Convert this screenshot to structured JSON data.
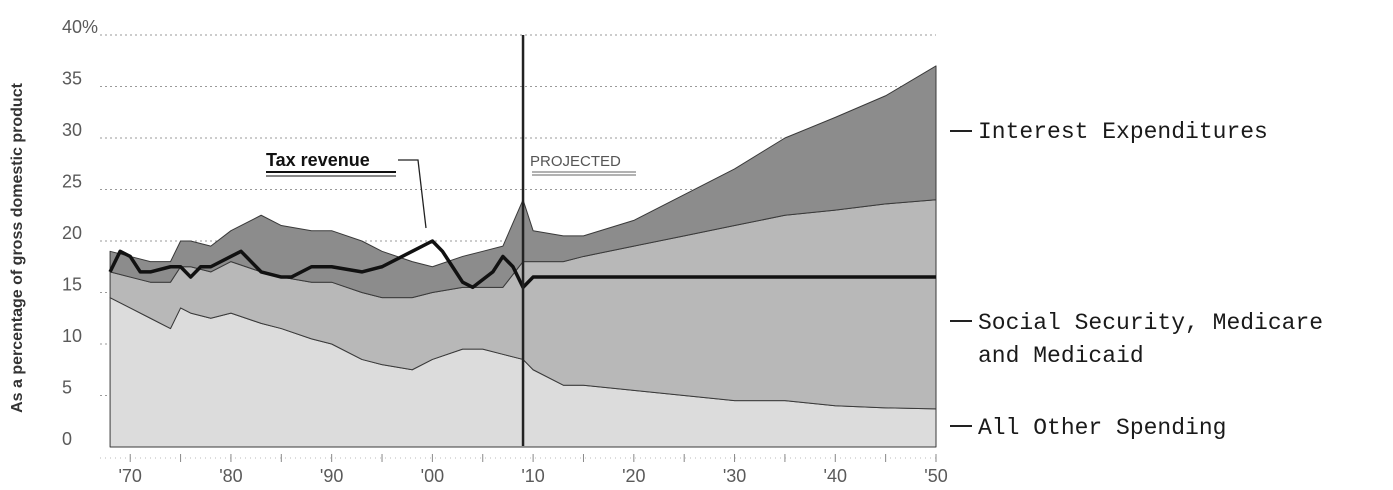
{
  "chart_data": {
    "type": "area",
    "ylabel": "As a percentage of gross domestic product",
    "xlabel": "",
    "ylim": [
      0,
      40
    ],
    "xlim": [
      1967,
      2050
    ],
    "y_ticks": [
      {
        "value": 40,
        "label": "40%"
      },
      {
        "value": 35,
        "label": "35"
      },
      {
        "value": 30,
        "label": "30"
      },
      {
        "value": 25,
        "label": "25"
      },
      {
        "value": 20,
        "label": "20"
      },
      {
        "value": 15,
        "label": "15"
      },
      {
        "value": 10,
        "label": "10"
      },
      {
        "value": 5,
        "label": "5"
      },
      {
        "value": 0,
        "label": "0"
      }
    ],
    "x_ticks": [
      {
        "value": 1970,
        "label": "'70"
      },
      {
        "value": 1980,
        "label": "'80"
      },
      {
        "value": 1990,
        "label": "'90"
      },
      {
        "value": 2000,
        "label": "'00"
      },
      {
        "value": 2010,
        "label": "'10"
      },
      {
        "value": 2020,
        "label": "'20"
      },
      {
        "value": 2030,
        "label": "'30"
      },
      {
        "value": 2040,
        "label": "'40"
      },
      {
        "value": 2050,
        "label": "'50"
      }
    ],
    "grid": true,
    "projection_year": 2009,
    "annotations": {
      "tax_revenue": "Tax revenue",
      "projected": "PROJECTED"
    },
    "stacked_series": [
      {
        "name": "All Other Spending",
        "legend_label": "All Other Spending",
        "color": "#dcdcdc",
        "x": [
          1968,
          1970,
          1972,
          1974,
          1975,
          1976,
          1978,
          1980,
          1983,
          1985,
          1988,
          1990,
          1993,
          1995,
          1998,
          2000,
          2003,
          2005,
          2007,
          2009,
          2010,
          2013,
          2015,
          2020,
          2025,
          2030,
          2035,
          2040,
          2045,
          2050
        ],
        "values": [
          14.5,
          13.5,
          12.5,
          11.5,
          13.5,
          13,
          12.5,
          13,
          12,
          11.5,
          10.5,
          10,
          8.5,
          8,
          7.5,
          8.5,
          9.5,
          9.5,
          9,
          8.5,
          7.5,
          6,
          6,
          5.5,
          5,
          4.5,
          4.5,
          4,
          3.8,
          3.7
        ]
      },
      {
        "name": "Social Security, Medicare and Medicaid",
        "legend_label": "Social Security, Medicare and Medicaid",
        "color": "#b8b8b8",
        "x": [
          1968,
          1970,
          1972,
          1974,
          1975,
          1976,
          1978,
          1980,
          1983,
          1985,
          1988,
          1990,
          1993,
          1995,
          1998,
          2000,
          2003,
          2005,
          2007,
          2009,
          2010,
          2013,
          2015,
          2020,
          2025,
          2030,
          2035,
          2040,
          2045,
          2050
        ],
        "values": [
          2.5,
          3,
          3.5,
          4.5,
          4,
          4.5,
          4.5,
          5,
          5,
          5,
          5.5,
          6,
          6.5,
          6.5,
          7,
          6.5,
          6,
          6,
          6.5,
          9.5,
          10.5,
          12,
          12.5,
          14,
          15.5,
          17,
          18,
          19,
          19.8,
          20.3
        ]
      },
      {
        "name": "Interest Expenditures",
        "legend_label": "Interest Expenditures",
        "color": "#8c8c8c",
        "x": [
          1968,
          1970,
          1972,
          1974,
          1975,
          1976,
          1978,
          1980,
          1983,
          1985,
          1988,
          1990,
          1993,
          1995,
          1998,
          2000,
          2003,
          2005,
          2007,
          2009,
          2010,
          2013,
          2015,
          2020,
          2025,
          2030,
          2035,
          2040,
          2045,
          2050
        ],
        "values": [
          2,
          2,
          2,
          2,
          2.5,
          2.5,
          2.5,
          3,
          5.5,
          5,
          5,
          5,
          5,
          4.5,
          3.5,
          2.5,
          3,
          3.5,
          4,
          6,
          3,
          2.5,
          2,
          2.5,
          4,
          5.5,
          7.5,
          9,
          10.5,
          13
        ]
      }
    ],
    "line_series": [
      {
        "name": "Tax revenue",
        "color": "#111111",
        "x": [
          1968,
          1969,
          1970,
          1971,
          1972,
          1974,
          1975,
          1976,
          1977,
          1978,
          1980,
          1981,
          1983,
          1985,
          1986,
          1988,
          1990,
          1993,
          1995,
          1998,
          2000,
          2001,
          2002,
          2003,
          2004,
          2006,
          2007,
          2008,
          2009,
          2010,
          2015,
          2020,
          2030,
          2040,
          2050
        ],
        "values": [
          17,
          19,
          18.5,
          17,
          17,
          17.5,
          17.5,
          16.5,
          17.5,
          17.5,
          18.5,
          19,
          17,
          16.5,
          16.5,
          17.5,
          17.5,
          17,
          17.5,
          19,
          20,
          19,
          17.5,
          16,
          15.5,
          17,
          18.5,
          17.5,
          15.5,
          16.5,
          16.5,
          16.5,
          16.5,
          16.5,
          16.5
        ]
      }
    ]
  }
}
